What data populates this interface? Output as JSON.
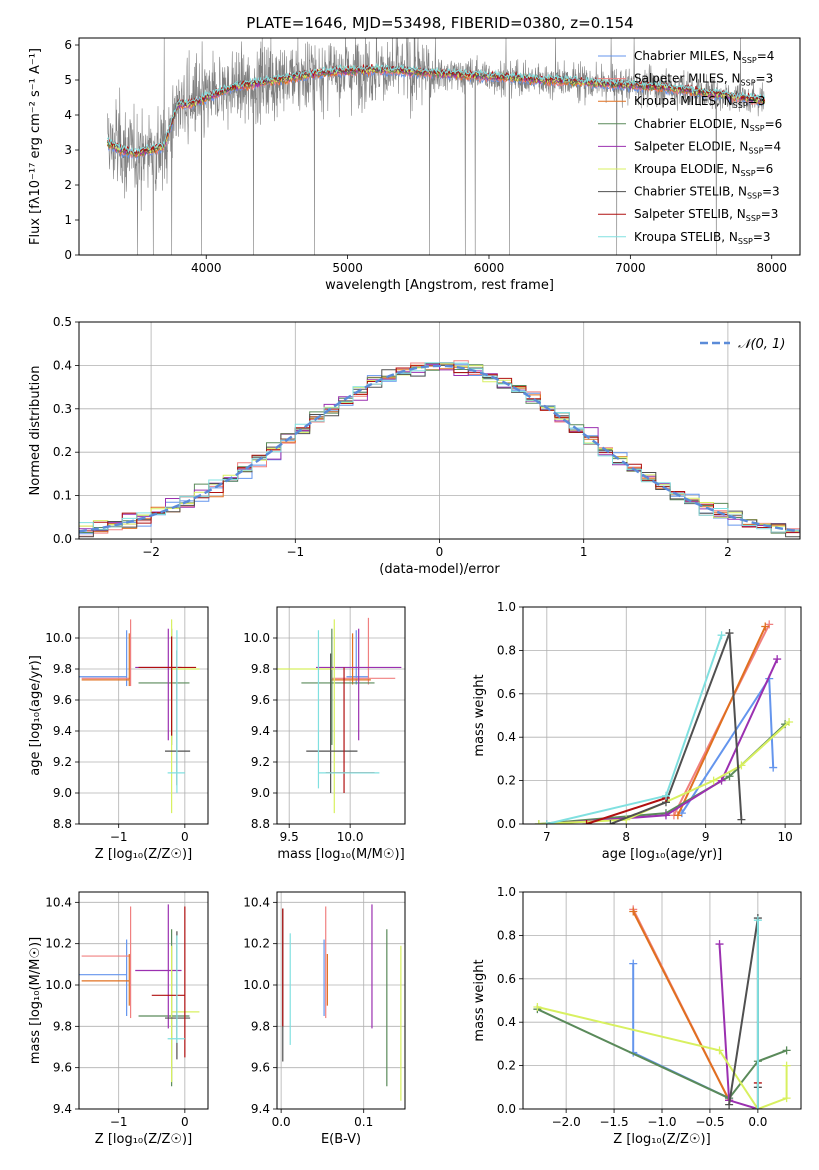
{
  "figure_title": "PLATE=1646, MJD=53498, FIBERID=0380, z=0.154",
  "chart_data": [
    {
      "id": "spectrum",
      "type": "line",
      "xlabel": "wavelength [Angstrom, rest frame]",
      "ylabel": "Flux [fλ10⁻¹⁷ erg cm⁻² s⁻¹ A⁻¹]",
      "xlim": [
        3100,
        8200
      ],
      "ylim": [
        0,
        6.2
      ],
      "xticks": [
        4000,
        5000,
        6000,
        7000,
        8000
      ],
      "yticks": [
        0,
        1,
        2,
        3,
        4,
        5,
        6
      ],
      "grid": false,
      "legend_position": "top-right",
      "data_color": "#808080",
      "data_wavelength_range": [
        3300,
        7950
      ],
      "model_wavelength_range": [
        3300,
        7950
      ],
      "continuum": {
        "wavelength": [
          3300,
          3400,
          3500,
          3600,
          3700,
          3800,
          3900,
          4000,
          4200,
          4500,
          4800,
          5200,
          5600,
          6000,
          6400,
          6800,
          7200,
          7600,
          7950
        ],
        "flux": [
          3.2,
          3.0,
          2.9,
          3.0,
          3.1,
          4.3,
          4.3,
          4.5,
          4.8,
          5.0,
          5.2,
          5.3,
          5.2,
          5.1,
          5.0,
          4.9,
          4.8,
          4.6,
          4.4
        ]
      },
      "series": [
        {
          "name": "Chabrier MILES, N_SSP=4",
          "color": "#6495ed"
        },
        {
          "name": "Salpeter MILES, N_SSP=3",
          "color": "#f08080"
        },
        {
          "name": "Kroupa MILES, N_SSP=3",
          "color": "#e07020"
        },
        {
          "name": "Chabrier ELODIE, N_SSP=6",
          "color": "#5a8a5a"
        },
        {
          "name": "Salpeter ELODIE, N_SSP=4",
          "color": "#9b30b0"
        },
        {
          "name": "Kroupa ELODIE, N_SSP=6",
          "color": "#d8f060"
        },
        {
          "name": "Chabrier STELIB, N_SSP=3",
          "color": "#505050"
        },
        {
          "name": "Salpeter STELIB, N_SSP=3",
          "color": "#b01010"
        },
        {
          "name": "Kroupa STELIB, N_SSP=3",
          "color": "#80e0e0"
        }
      ]
    },
    {
      "id": "residuals",
      "type": "histogram",
      "xlabel": "(data-model)/error",
      "ylabel": "Normed distribution",
      "xlim": [
        -2.5,
        2.5
      ],
      "ylim": [
        0,
        0.5
      ],
      "xticks": [
        -2,
        -1,
        0,
        1,
        2
      ],
      "yticks": [
        0.0,
        0.1,
        0.2,
        0.3,
        0.4,
        0.5
      ],
      "grid": true,
      "legend_position": "top-right",
      "legend": [
        {
          "name": "𝒩(0, 1)",
          "color": "#5b8bd8",
          "dashed": true
        }
      ],
      "bin_edges": [
        -2.5,
        2.5
      ],
      "bin_width": 0.1
    },
    {
      "id": "age-vs-Z",
      "type": "errorbar",
      "xlabel": "Z [log₁₀(Z/Z☉)]",
      "ylabel": "age  [log₁₀(age/yr)]",
      "xlim": [
        -1.6,
        0.35
      ],
      "ylim": [
        8.8,
        10.2
      ],
      "xticks": [
        -1,
        0
      ],
      "yticks": [
        8.8,
        9.0,
        9.2,
        9.4,
        9.6,
        9.8,
        10.0
      ],
      "grid": true,
      "points": [
        {
          "x": -0.88,
          "xerr": [
            0.72,
            0.0
          ],
          "y": 9.75,
          "yerr": [
            0.06,
            0.3
          ],
          "color": "#6495ed"
        },
        {
          "x": -0.82,
          "xerr": [
            0.74,
            0.0
          ],
          "y": 9.74,
          "yerr": [
            0.05,
            0.38
          ],
          "color": "#f08080"
        },
        {
          "x": -0.84,
          "xerr": [
            0.72,
            0.0
          ],
          "y": 9.73,
          "yerr": [
            0.04,
            0.3
          ],
          "color": "#e07020"
        },
        {
          "x": -0.2,
          "xerr": [
            0.5,
            0.27
          ],
          "y": 9.71,
          "yerr": [
            0.4,
            0.35
          ],
          "color": "#5a8a5a"
        },
        {
          "x": -0.25,
          "xerr": [
            0.5,
            0.2
          ],
          "y": 9.81,
          "yerr": [
            0.47,
            0.25
          ],
          "color": "#9b30b0"
        },
        {
          "x": -0.2,
          "xerr": [
            0.0,
            0.42
          ],
          "y": 9.8,
          "yerr": [
            0.93,
            0.32
          ],
          "color": "#d8f060"
        },
        {
          "x": -0.12,
          "xerr": [
            0.18,
            0.2
          ],
          "y": 9.27,
          "yerr": [
            0.22,
            0.65
          ],
          "color": "#505050"
        },
        {
          "x": -0.2,
          "xerr": [
            0.5,
            0.37
          ],
          "y": 9.81,
          "yerr": [
            0.44,
            0.2
          ],
          "color": "#b01010"
        },
        {
          "x": -0.12,
          "xerr": [
            0.14,
            0.12
          ],
          "y": 9.13,
          "yerr": [
            0.13,
            0.92
          ],
          "color": "#80e0e0"
        }
      ]
    },
    {
      "id": "age-vs-mass",
      "type": "errorbar",
      "xlabel": "mass [log₁₀(M/M☉)]",
      "ylabel": "",
      "xlim": [
        9.4,
        10.45
      ],
      "ylim": [
        8.8,
        10.2
      ],
      "xticks": [
        9.5,
        10.0
      ],
      "yticks": [
        8.8,
        9.0,
        9.2,
        9.4,
        9.6,
        9.8,
        10.0
      ],
      "grid": true,
      "points": [
        {
          "x": 10.05,
          "xerr": [
            0.08,
            0.1
          ],
          "y": 9.75,
          "yerr": [
            0.05,
            0.3
          ],
          "color": "#6495ed"
        },
        {
          "x": 10.15,
          "xerr": [
            0.3,
            0.22
          ],
          "y": 9.74,
          "yerr": [
            0.04,
            0.39
          ],
          "color": "#f08080"
        },
        {
          "x": 10.02,
          "xerr": [
            0.18,
            0.15
          ],
          "y": 9.73,
          "yerr": [
            0.03,
            0.3
          ],
          "color": "#e07020"
        },
        {
          "x": 9.85,
          "xerr": [
            0.25,
            0.35
          ],
          "y": 9.71,
          "yerr": [
            0.4,
            0.35
          ],
          "color": "#5a8a5a"
        },
        {
          "x": 10.07,
          "xerr": [
            0.35,
            0.35
          ],
          "y": 9.81,
          "yerr": [
            0.47,
            0.25
          ],
          "color": "#9b30b0"
        },
        {
          "x": 9.87,
          "xerr": [
            0.5,
            0.0
          ],
          "y": 9.8,
          "yerr": [
            0.93,
            0.32
          ],
          "color": "#d8f060"
        },
        {
          "x": 9.84,
          "xerr": [
            0.2,
            0.22
          ],
          "y": 9.27,
          "yerr": [
            0.27,
            0.63
          ],
          "color": "#505050"
        },
        {
          "x": 9.95,
          "xerr": [
            0.15,
            0.25
          ],
          "y": 9.13,
          "yerr": [
            0.13,
            0.68
          ],
          "color": "#b01010"
        },
        {
          "x": 9.74,
          "xerr": [
            0.0,
            0.5
          ],
          "y": 9.13,
          "yerr": [
            0.1,
            0.92
          ],
          "color": "#80e0e0"
        }
      ]
    },
    {
      "id": "weight-vs-age",
      "type": "line",
      "xlabel": "age  [log₁₀(age/yr)]",
      "ylabel": "mass weight",
      "xlim": [
        6.7,
        10.2
      ],
      "ylim": [
        0,
        1.0
      ],
      "xticks": [
        7,
        8,
        9,
        10
      ],
      "yticks": [
        0.0,
        0.2,
        0.4,
        0.6,
        0.8,
        1.0
      ],
      "grid": true,
      "series": [
        {
          "name": "Chabrier MILES",
          "color": "#6495ed",
          "x": [
            8.7,
            9.8,
            9.85
          ],
          "y": [
            0.05,
            0.67,
            0.26
          ]
        },
        {
          "name": "Salpeter MILES",
          "color": "#f08080",
          "x": [
            8.6,
            9.8
          ],
          "y": [
            0.04,
            0.92
          ]
        },
        {
          "name": "Kroupa MILES",
          "color": "#e07020",
          "x": [
            8.65,
            9.75
          ],
          "y": [
            0.04,
            0.91
          ]
        },
        {
          "name": "Chabrier ELODIE",
          "color": "#5a8a5a",
          "x": [
            6.9,
            8.5,
            9.3,
            10.0
          ],
          "y": [
            0.0,
            0.05,
            0.22,
            0.46
          ]
        },
        {
          "name": "Salpeter ELODIE",
          "color": "#9b30b0",
          "x": [
            7.0,
            8.5,
            9.2,
            9.9
          ],
          "y": [
            0.0,
            0.04,
            0.2,
            0.76
          ]
        },
        {
          "name": "Kroupa ELODIE",
          "color": "#d8f060",
          "x": [
            6.9,
            8.0,
            9.1,
            9.45,
            10.05
          ],
          "y": [
            0.0,
            0.02,
            0.2,
            0.27,
            0.47
          ]
        },
        {
          "name": "Chabrier STELIB",
          "color": "#505050",
          "x": [
            7.8,
            8.5,
            9.3,
            9.45
          ],
          "y": [
            0.0,
            0.1,
            0.88,
            0.02
          ]
        },
        {
          "name": "Salpeter STELIB",
          "color": "#b01010",
          "x": [
            7.5,
            8.5
          ],
          "y": [
            0.0,
            0.12
          ]
        },
        {
          "name": "Kroupa STELIB",
          "color": "#80e0e0",
          "x": [
            7.0,
            8.5,
            9.2
          ],
          "y": [
            0.0,
            0.13,
            0.87
          ]
        }
      ]
    },
    {
      "id": "mass-vs-Z",
      "type": "errorbar",
      "xlabel": "Z [log₁₀(Z/Z☉)]",
      "ylabel": "mass [log₁₀(M/M☉)]",
      "xlim": [
        -1.6,
        0.35
      ],
      "ylim": [
        9.4,
        10.45
      ],
      "xticks": [
        -1,
        0
      ],
      "yticks": [
        9.4,
        9.6,
        9.8,
        10.0,
        10.2,
        10.4
      ],
      "grid": true,
      "points": [
        {
          "x": -0.88,
          "xerr": [
            0.72,
            0.0
          ],
          "y": 10.05,
          "yerr": [
            0.2,
            0.17
          ],
          "color": "#6495ed"
        },
        {
          "x": -0.82,
          "xerr": [
            0.74,
            0.0
          ],
          "y": 10.14,
          "yerr": [
            0.3,
            0.24
          ],
          "color": "#f08080"
        },
        {
          "x": -0.84,
          "xerr": [
            0.72,
            0.0
          ],
          "y": 10.02,
          "yerr": [
            0.12,
            0.13
          ],
          "color": "#e07020"
        },
        {
          "x": -0.2,
          "xerr": [
            0.5,
            0.27
          ],
          "y": 9.85,
          "yerr": [
            0.34,
            0.42
          ],
          "color": "#5a8a5a"
        },
        {
          "x": -0.25,
          "xerr": [
            0.5,
            0.2
          ],
          "y": 10.07,
          "yerr": [
            0.28,
            0.32
          ],
          "color": "#9b30b0"
        },
        {
          "x": -0.2,
          "xerr": [
            0.0,
            0.42
          ],
          "y": 9.87,
          "yerr": [
            0.34,
            0.32
          ],
          "color": "#d8f060"
        },
        {
          "x": -0.12,
          "xerr": [
            0.18,
            0.2
          ],
          "y": 9.84,
          "yerr": [
            0.2,
            0.42
          ],
          "color": "#505050"
        },
        {
          "x": 0.0,
          "xerr": [
            0.5,
            0.0
          ],
          "y": 9.95,
          "yerr": [
            0.3,
            0.43
          ],
          "color": "#b01010"
        },
        {
          "x": -0.12,
          "xerr": [
            0.14,
            0.12
          ],
          "y": 9.74,
          "yerr": [
            0.02,
            0.5
          ],
          "color": "#80e0e0"
        }
      ]
    },
    {
      "id": "mass-vs-ebv",
      "type": "errorbar",
      "xlabel": "E(B-V)",
      "ylabel": "",
      "xlim": [
        -0.005,
        0.15
      ],
      "ylim": [
        9.4,
        10.45
      ],
      "xticks": [
        0.0,
        0.1
      ],
      "yticks": [
        9.4,
        9.6,
        9.8,
        10.0,
        10.2,
        10.4
      ],
      "grid": true,
      "points": [
        {
          "x": 0.052,
          "y": 10.05,
          "yerr": [
            0.2,
            0.17
          ],
          "color": "#6495ed"
        },
        {
          "x": 0.054,
          "y": 10.14,
          "yerr": [
            0.3,
            0.24
          ],
          "color": "#f08080"
        },
        {
          "x": 0.056,
          "y": 10.02,
          "yerr": [
            0.12,
            0.13
          ],
          "color": "#e07020"
        },
        {
          "x": 0.128,
          "y": 9.85,
          "yerr": [
            0.34,
            0.42
          ],
          "color": "#5a8a5a"
        },
        {
          "x": 0.11,
          "y": 10.07,
          "yerr": [
            0.28,
            0.32
          ],
          "color": "#9b30b0"
        },
        {
          "x": 0.145,
          "y": 9.87,
          "yerr": [
            0.43,
            0.32
          ],
          "color": "#d8f060"
        },
        {
          "x": 0.002,
          "y": 10.0,
          "yerr": [
            0.37,
            0.37
          ],
          "color": "#505050"
        },
        {
          "x": 0.002,
          "y": 10.0,
          "yerr": [
            0.2,
            0.37
          ],
          "color": "#b01010"
        },
        {
          "x": 0.011,
          "y": 9.98,
          "yerr": [
            0.27,
            0.27
          ],
          "color": "#80e0e0"
        }
      ]
    },
    {
      "id": "weight-vs-Z",
      "type": "line",
      "xlabel": "Z [log₁₀(Z/Z☉)]",
      "ylabel": "mass weight",
      "xlim": [
        -2.45,
        0.45
      ],
      "ylim": [
        0,
        1.0
      ],
      "xticks": [
        -2.0,
        -1.5,
        -1.0,
        -0.5,
        0.0
      ],
      "yticks": [
        0.0,
        0.2,
        0.4,
        0.6,
        0.8,
        1.0
      ],
      "grid": true,
      "series": [
        {
          "name": "Chabrier MILES",
          "color": "#6495ed",
          "x": [
            -1.3,
            -1.3,
            -0.3
          ],
          "y": [
            0.67,
            0.26,
            0.05
          ]
        },
        {
          "name": "Salpeter MILES",
          "color": "#f08080",
          "x": [
            -1.3,
            -0.3
          ],
          "y": [
            0.92,
            0.04
          ]
        },
        {
          "name": "Kroupa MILES",
          "color": "#e07020",
          "x": [
            -1.3,
            -0.3
          ],
          "y": [
            0.91,
            0.04
          ]
        },
        {
          "name": "Chabrier ELODIE",
          "color": "#5a8a5a",
          "x": [
            -2.3,
            -0.3,
            0.0,
            0.3
          ],
          "y": [
            0.46,
            0.05,
            0.22,
            0.27
          ]
        },
        {
          "name": "Salpeter ELODIE",
          "color": "#9b30b0",
          "x": [
            -0.4,
            -0.3,
            0.0
          ],
          "y": [
            0.76,
            0.04,
            0.0
          ]
        },
        {
          "name": "Kroupa ELODIE",
          "color": "#d8f060",
          "x": [
            -2.3,
            -0.4,
            0.0,
            0.3,
            0.3
          ],
          "y": [
            0.47,
            0.27,
            0.0,
            0.05,
            0.2
          ]
        },
        {
          "name": "Chabrier STELIB",
          "color": "#505050",
          "x": [
            -0.3,
            0.0,
            0.0
          ],
          "y": [
            0.02,
            0.88,
            0.1
          ]
        },
        {
          "name": "Salpeter STELIB",
          "color": "#b01010",
          "x": [
            0.0,
            0.0
          ],
          "y": [
            0.0,
            0.12
          ]
        },
        {
          "name": "Kroupa STELIB",
          "color": "#80e0e0",
          "x": [
            0.0,
            0.0
          ],
          "y": [
            0.0,
            0.87
          ]
        }
      ]
    }
  ]
}
